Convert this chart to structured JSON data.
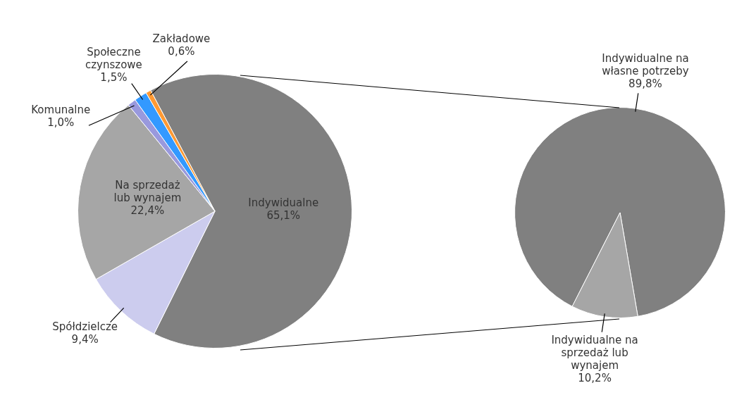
{
  "chart_data": [
    {
      "type": "pie",
      "categories": [
        "Indywidualne",
        "Spółdzielcze",
        "Na sprzedaż lub wynajem",
        "Komunalne",
        "Społeczne czynszowe",
        "Zakładowe"
      ],
      "values": [
        65.1,
        9.4,
        22.4,
        1.0,
        1.5,
        0.6
      ],
      "colors": [
        "#808080",
        "#ccccee",
        "#a6a6a6",
        "#9999dd",
        "#3399ff",
        "#ff9933"
      ],
      "value_labels": [
        "65,1%",
        "9,4%",
        "22,4%",
        "1,0%",
        "1,5%",
        "0,6%"
      ]
    },
    {
      "type": "pie",
      "categories": [
        "Indywidualne na własne potrzeby",
        "Indywidualne na sprzedaż lub wynajem"
      ],
      "values": [
        89.8,
        10.2
      ],
      "colors": [
        "#808080",
        "#a6a6a6"
      ],
      "value_labels": [
        "89,8%",
        "10,2%"
      ]
    }
  ]
}
